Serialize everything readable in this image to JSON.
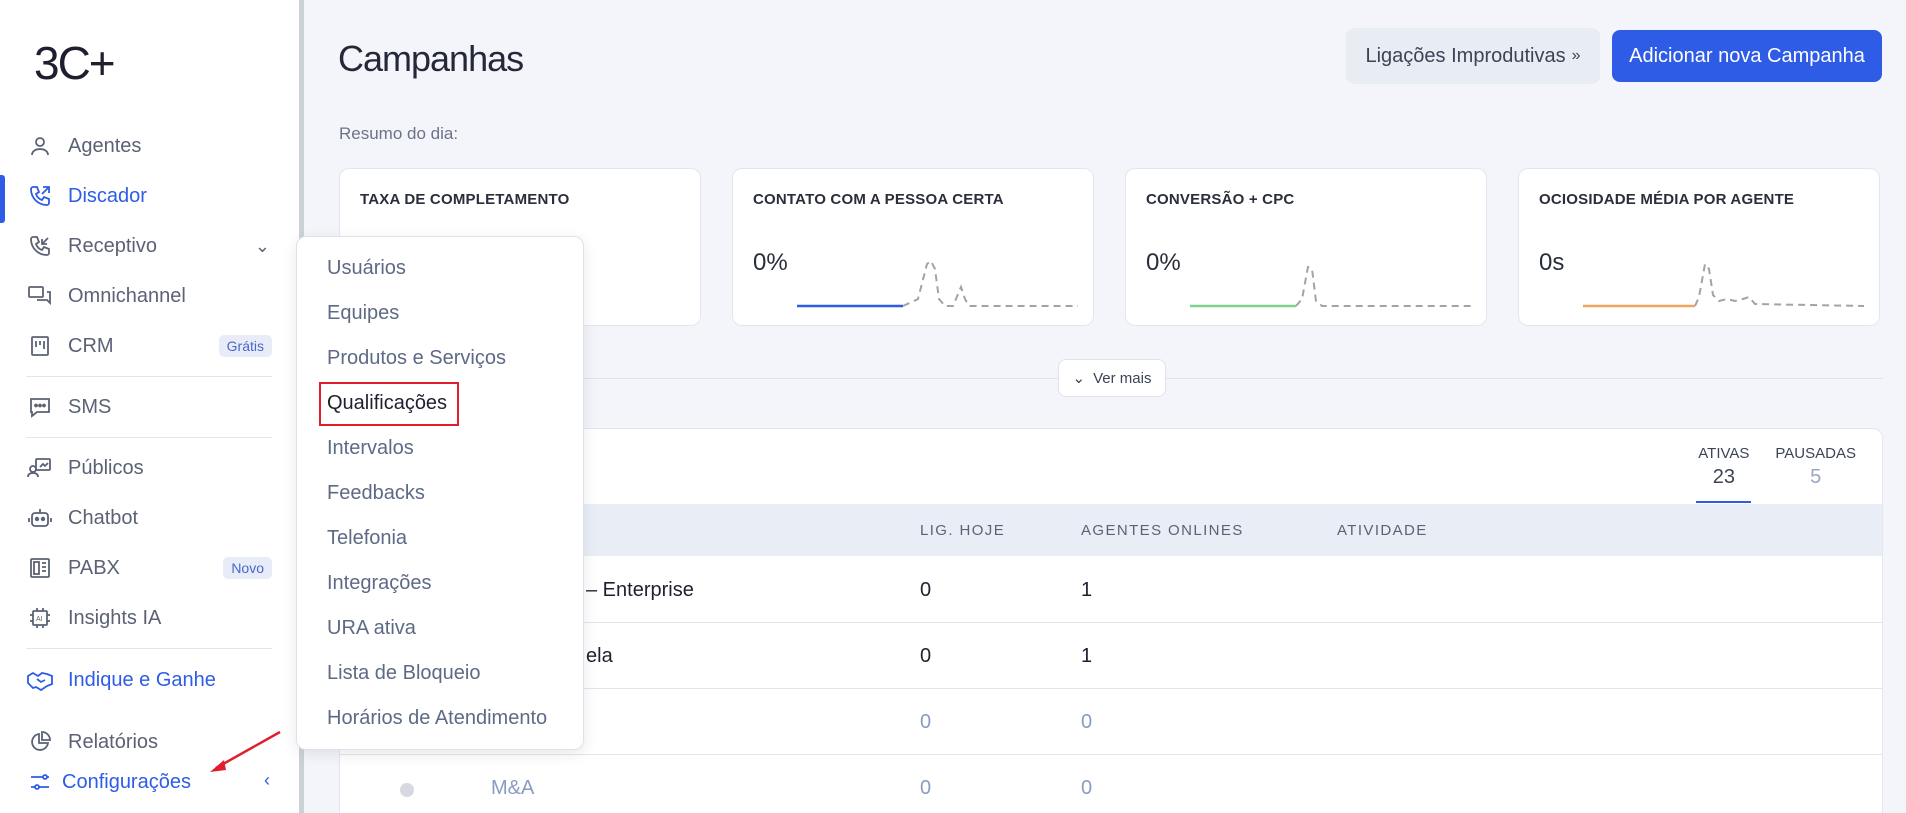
{
  "brand": {
    "logo_text": "3C+"
  },
  "sidebar": {
    "items": [
      {
        "label": "Agentes",
        "icon": "user-icon"
      },
      {
        "label": "Discador",
        "icon": "phone-outgoing-icon",
        "active": true
      },
      {
        "label": "Receptivo",
        "icon": "phone-incoming-icon",
        "has_chevron": true
      },
      {
        "label": "Omnichannel",
        "icon": "chat-icon"
      },
      {
        "label": "CRM",
        "icon": "crm-icon",
        "badge": "Grátis"
      },
      {
        "label": "SMS",
        "icon": "sms-icon"
      },
      {
        "label": "Públicos",
        "icon": "audience-icon"
      },
      {
        "label": "Chatbot",
        "icon": "robot-icon"
      },
      {
        "label": "PABX",
        "icon": "pabx-icon",
        "badge": "Novo"
      },
      {
        "label": "Insights IA",
        "icon": "ai-chip-icon"
      },
      {
        "label": "Indique e Ganhe",
        "icon": "handshake-icon"
      },
      {
        "label": "Relatórios",
        "icon": "pie-chart-icon"
      },
      {
        "label": "Configurações",
        "icon": "settings-sliders-icon"
      }
    ]
  },
  "header": {
    "title": "Campanhas",
    "filter_label": "Ligações Improdutivas",
    "add_label": "Adicionar nova Campanha"
  },
  "summary": {
    "label": "Resumo do dia:",
    "cards": [
      {
        "title": "TAXA DE COMPLETAMENTO",
        "value": ""
      },
      {
        "title": "CONTATO COM A PESSOA CERTA",
        "value": "0%",
        "color": "#2e5ce6"
      },
      {
        "title": "CONVERSÃO + CPC",
        "value": "0%",
        "color": "#7fd18b"
      },
      {
        "title": "OCIOSIDADE MÉDIA POR AGENTE",
        "value": "0s",
        "color": "#f2a65a"
      }
    ],
    "ver_mais": "Ver mais"
  },
  "campaigns": {
    "tabs": [
      {
        "label": "ATIVAS",
        "count": "23"
      },
      {
        "label": "PAUSADAS",
        "count": "5"
      }
    ],
    "columns": [
      "LIG. HOJE",
      "AGENTES ONLINES",
      "ATIVIDADE"
    ],
    "rows": [
      {
        "name": "– Enterprise",
        "calls": "0",
        "agents": "1"
      },
      {
        "name": "ela",
        "calls": "0",
        "agents": "1"
      },
      {
        "name": "",
        "calls": "0",
        "agents": "0"
      },
      {
        "name": "M&A",
        "calls": "0",
        "agents": "0"
      }
    ]
  },
  "settings_menu": {
    "items": [
      "Usuários",
      "Equipes",
      "Produtos e Serviços",
      "Qualificações",
      "Intervalos",
      "Feedbacks",
      "Telefonia",
      "Integrações",
      "URA ativa",
      "Lista de Bloqueio",
      "Horários de Atendimento"
    ],
    "highlighted": "Qualificações"
  },
  "colors": {
    "accent": "#2e5ce6",
    "highlight_border": "#e01e2e"
  }
}
